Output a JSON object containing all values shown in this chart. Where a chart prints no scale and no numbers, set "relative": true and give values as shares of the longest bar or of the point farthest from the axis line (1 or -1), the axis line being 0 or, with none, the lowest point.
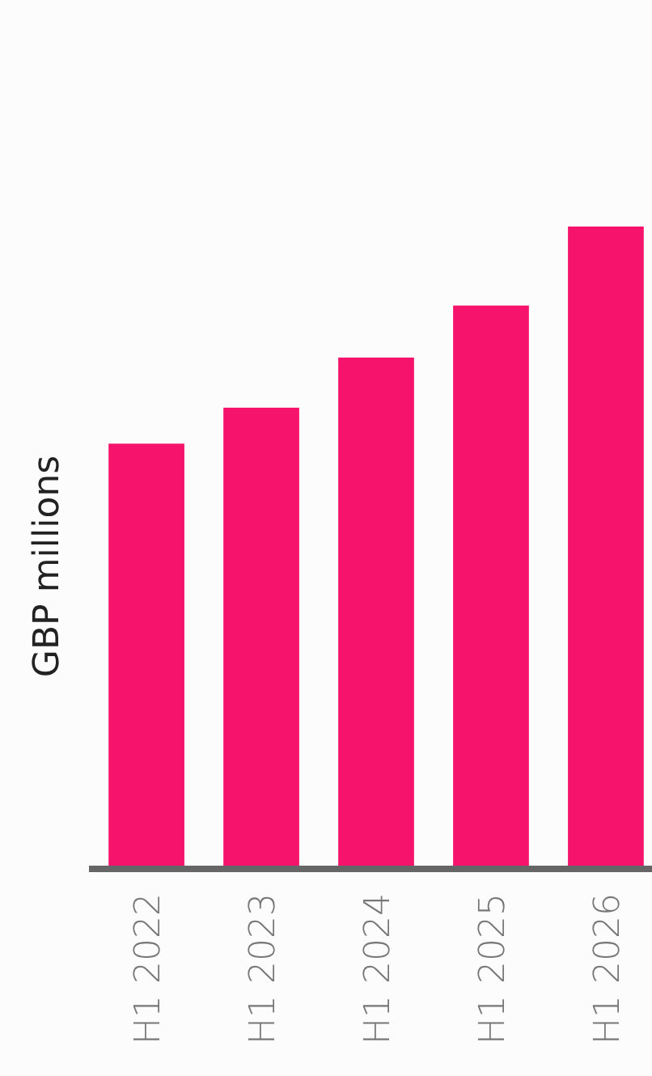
{
  "chart_data": {
    "type": "bar",
    "ylabel": "GBP millions",
    "categories": [
      "H1 2022",
      "H1 2023",
      "H1 2024",
      "H1 2025",
      "H1 2026"
    ],
    "values": [
      0.662,
      0.718,
      0.796,
      0.877,
      1
    ],
    "color": "#f5136b",
    "relative": true
  }
}
